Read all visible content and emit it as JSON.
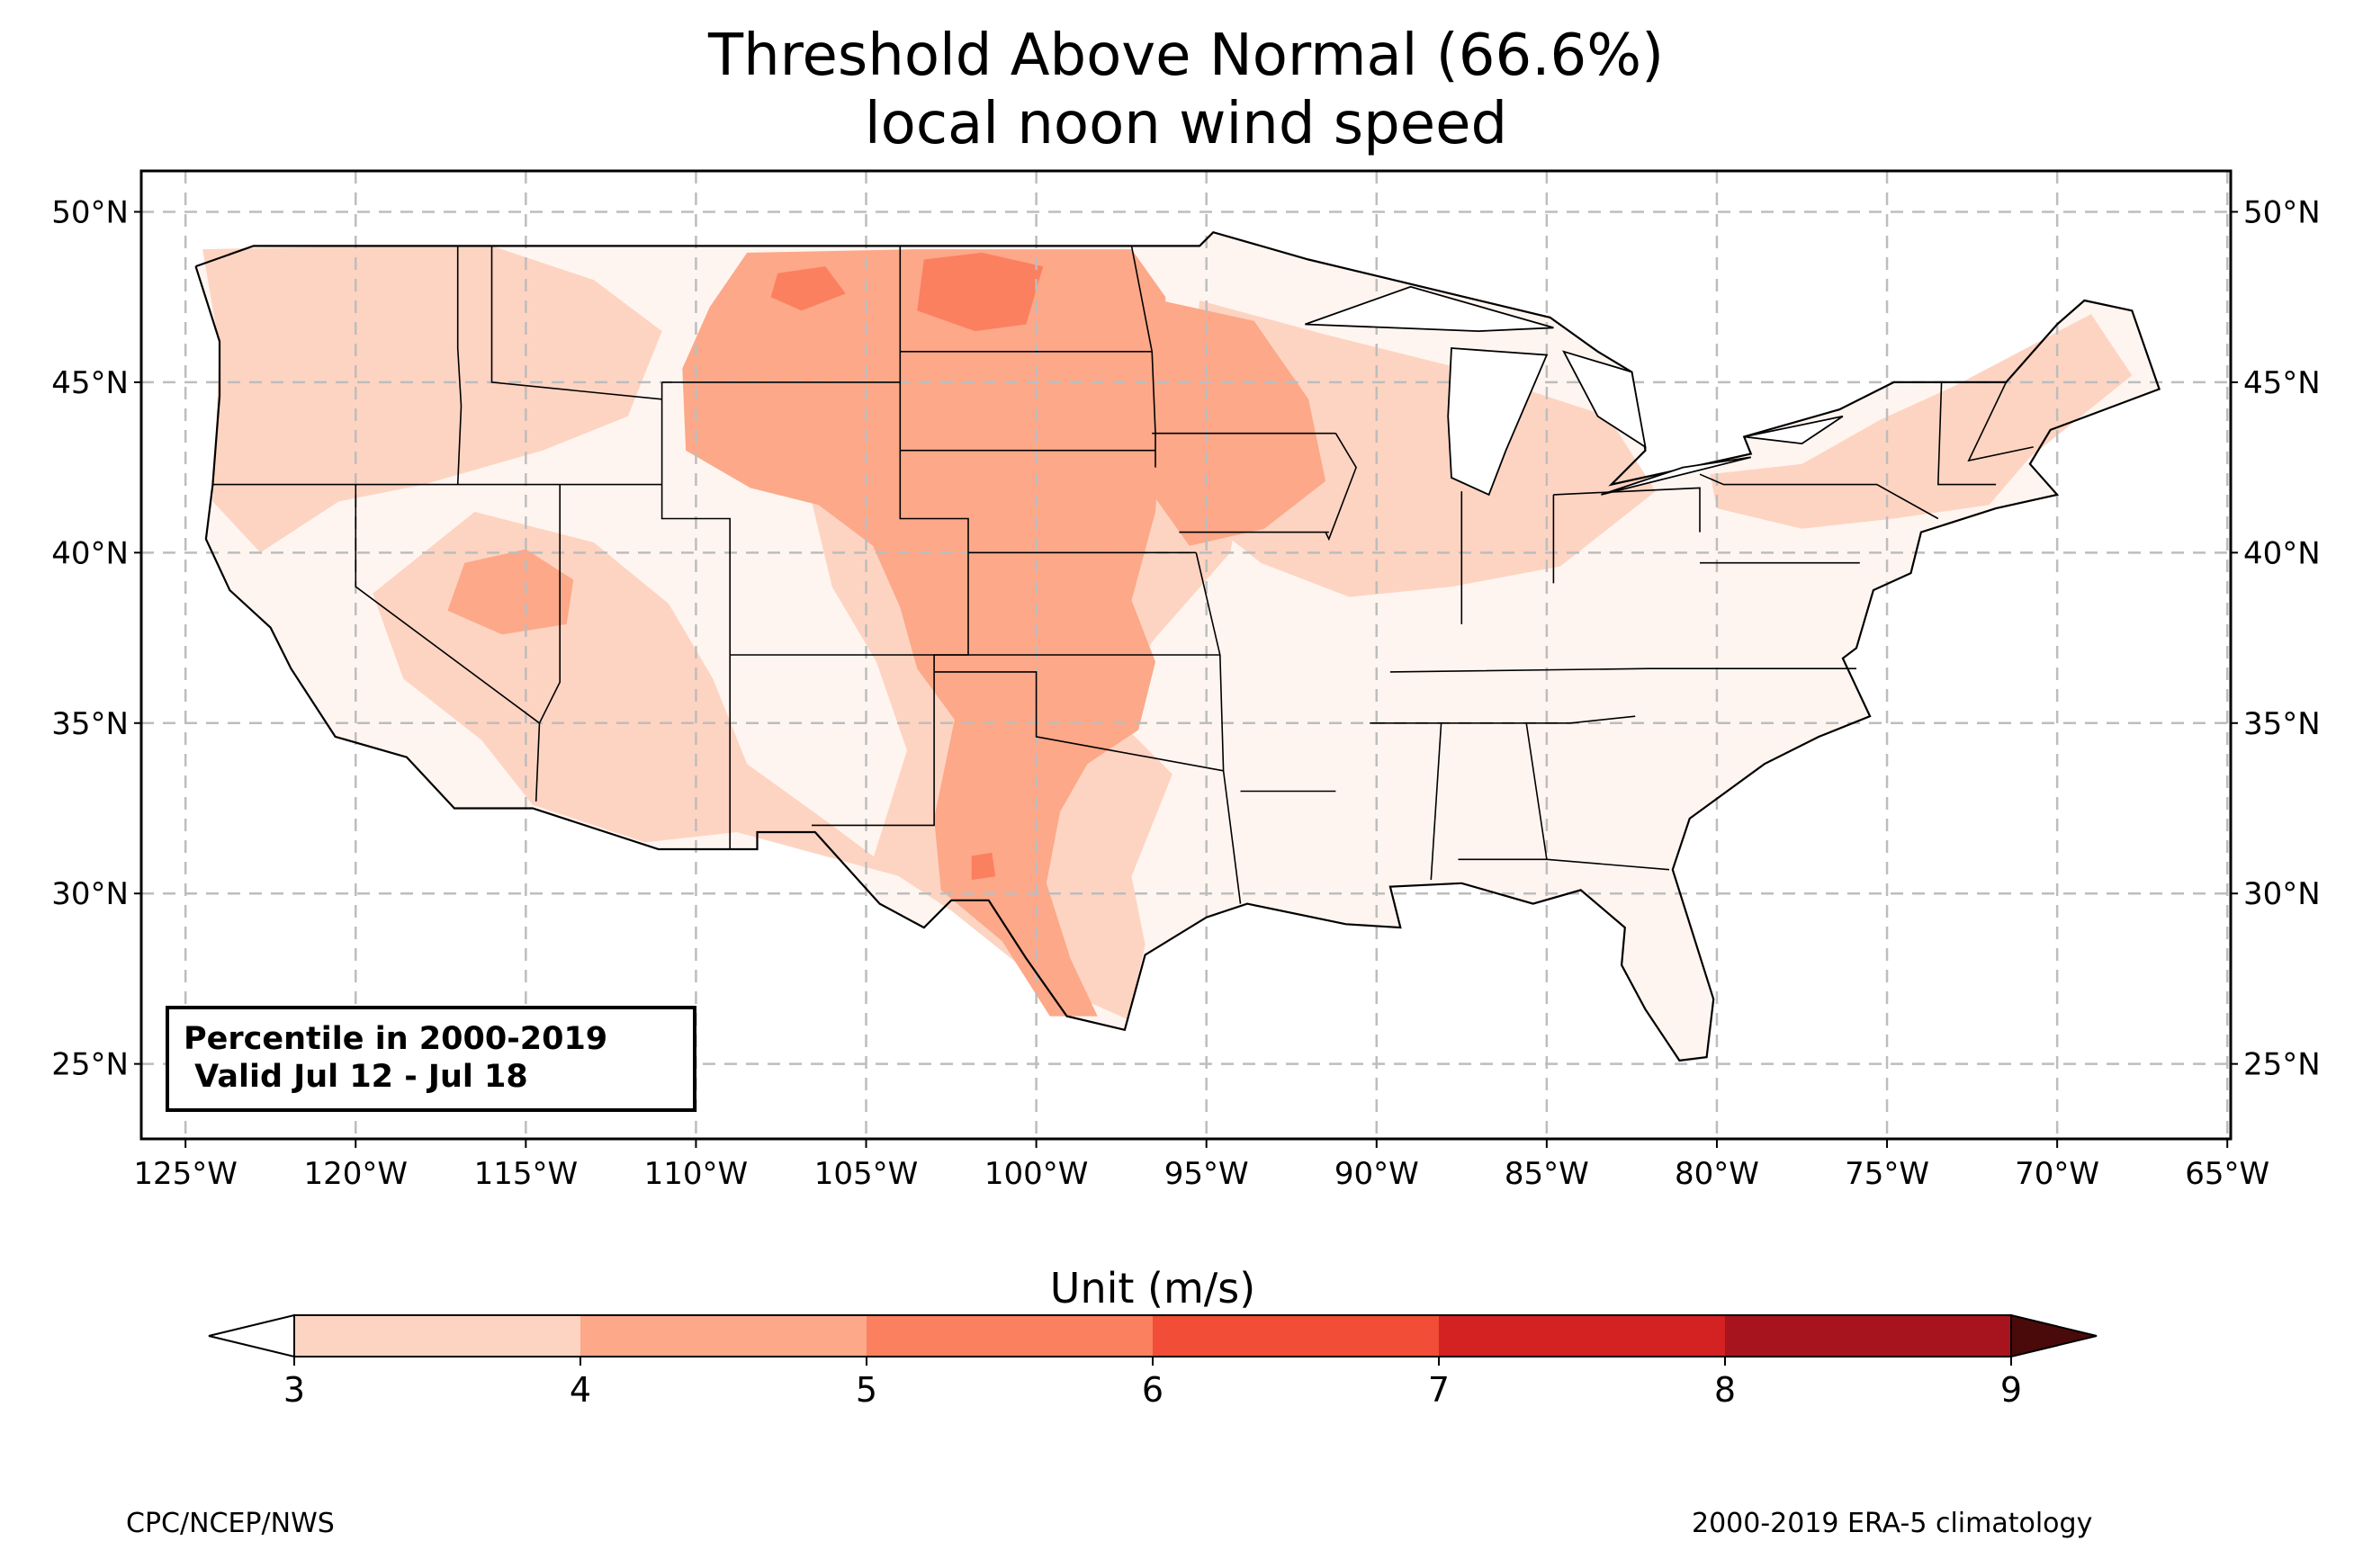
{
  "title": {
    "line1": "Threshold Above Normal (66.6%)",
    "line2": "local noon wind speed"
  },
  "info_box": {
    "line1": "Percentile in 2000-2019",
    "line2": " Valid Jul 12 - Jul 18"
  },
  "map": {
    "region": "Contiguous United States",
    "projection": "PlateCarree",
    "lon_range": [
      -126.3,
      -64.9
    ],
    "lat_range": [
      22.8,
      51.2
    ],
    "lon_ticks": [
      -125,
      -120,
      -115,
      -110,
      -105,
      -100,
      -95,
      -90,
      -85,
      -80,
      -75,
      -70,
      -65
    ],
    "lon_tick_labels": [
      "125°W",
      "120°W",
      "115°W",
      "110°W",
      "105°W",
      "100°W",
      "95°W",
      "90°W",
      "85°W",
      "80°W",
      "75°W",
      "70°W",
      "65°W"
    ],
    "lat_ticks": [
      25,
      30,
      35,
      40,
      45,
      50
    ],
    "lat_tick_labels": [
      "25°N",
      "30°N",
      "35°N",
      "40°N",
      "45°N",
      "50°N"
    ],
    "gridlines": true,
    "base_fill_color": "#fff1ec",
    "filled_regions": [
      {
        "name": "northern plains / dakotas",
        "level": "5-6",
        "color": "#fb8060",
        "polygon": [
          [
            -103.3,
            48.6
          ],
          [
            -101.6,
            48.8
          ],
          [
            -99.8,
            48.4
          ],
          [
            -100.3,
            46.7
          ],
          [
            -101.8,
            46.5
          ],
          [
            -103.5,
            47.1
          ]
        ]
      },
      {
        "name": "montana east",
        "level": "5-6",
        "color": "#fb8060",
        "polygon": [
          [
            -107.6,
            48.2
          ],
          [
            -106.2,
            48.4
          ],
          [
            -105.6,
            47.6
          ],
          [
            -106.9,
            47.1
          ],
          [
            -107.8,
            47.5
          ]
        ]
      },
      {
        "name": "west texas",
        "level": "5-6",
        "color": "#fb8060",
        "polygon": [
          [
            -101.9,
            31.1
          ],
          [
            -101.3,
            31.2
          ],
          [
            -101.2,
            30.5
          ],
          [
            -101.9,
            30.4
          ]
        ]
      },
      {
        "name": "great plains core",
        "level": "4-5",
        "color": "#fca889",
        "polygon": [
          [
            -108.5,
            48.8
          ],
          [
            -103.5,
            48.9
          ],
          [
            -97.2,
            48.9
          ],
          [
            -96.2,
            47.5
          ],
          [
            -96.3,
            44.0
          ],
          [
            -96.5,
            41.2
          ],
          [
            -97.2,
            38.6
          ],
          [
            -96.5,
            36.8
          ],
          [
            -97.0,
            34.8
          ],
          [
            -98.5,
            33.8
          ],
          [
            -99.3,
            32.4
          ],
          [
            -99.7,
            30.3
          ],
          [
            -99.0,
            28.1
          ],
          [
            -98.2,
            26.4
          ],
          [
            -99.6,
            26.4
          ],
          [
            -101.0,
            28.6
          ],
          [
            -102.8,
            30.1
          ],
          [
            -103.0,
            32.2
          ],
          [
            -102.4,
            35.1
          ],
          [
            -103.5,
            36.6
          ],
          [
            -104.0,
            38.4
          ],
          [
            -104.8,
            40.2
          ],
          [
            -106.4,
            41.4
          ],
          [
            -108.4,
            41.9
          ],
          [
            -110.3,
            43.0
          ],
          [
            -110.4,
            45.4
          ],
          [
            -109.6,
            47.2
          ]
        ]
      },
      {
        "name": "upper midwest",
        "level": "4-5",
        "color": "#fca889",
        "polygon": [
          [
            -96.8,
            47.5
          ],
          [
            -93.6,
            46.8
          ],
          [
            -92.0,
            44.5
          ],
          [
            -91.5,
            42.1
          ],
          [
            -93.3,
            40.7
          ],
          [
            -95.5,
            40.2
          ],
          [
            -96.5,
            41.6
          ]
        ]
      },
      {
        "name": "great basin",
        "level": "4-5",
        "color": "#fca889",
        "polygon": [
          [
            -116.8,
            39.7
          ],
          [
            -115.0,
            40.1
          ],
          [
            -113.6,
            39.2
          ],
          [
            -113.8,
            37.9
          ],
          [
            -115.7,
            37.6
          ],
          [
            -117.3,
            38.3
          ]
        ]
      },
      {
        "name": "northwest",
        "level": "3-4",
        "color": "#fdd4c2",
        "polygon": [
          [
            -124.5,
            48.9
          ],
          [
            -119.5,
            49.0
          ],
          [
            -116.0,
            49.0
          ],
          [
            -113.0,
            48.0
          ],
          [
            -111.0,
            46.5
          ],
          [
            -112.0,
            44.0
          ],
          [
            -114.5,
            43.0
          ],
          [
            -118.0,
            42.0
          ],
          [
            -120.5,
            41.5
          ],
          [
            -122.8,
            40.0
          ],
          [
            -124.2,
            41.5
          ],
          [
            -124.0,
            46.0
          ]
        ]
      },
      {
        "name": "southwest",
        "level": "3-4",
        "color": "#fdd4c2",
        "polygon": [
          [
            -119.5,
            38.8
          ],
          [
            -116.5,
            41.2
          ],
          [
            -113.0,
            40.3
          ],
          [
            -110.8,
            38.5
          ],
          [
            -109.5,
            36.3
          ],
          [
            -108.5,
            33.8
          ],
          [
            -106.0,
            32.0
          ],
          [
            -104.0,
            30.5
          ],
          [
            -108.8,
            31.8
          ],
          [
            -111.5,
            31.5
          ],
          [
            -114.8,
            32.6
          ],
          [
            -116.3,
            34.5
          ],
          [
            -118.6,
            36.3
          ]
        ]
      },
      {
        "name": "central plains",
        "level": "3-4",
        "color": "#fdd4c2",
        "polygon": [
          [
            -106.5,
            44.2
          ],
          [
            -103.5,
            44.5
          ],
          [
            -97.0,
            45.0
          ],
          [
            -93.5,
            44.5
          ],
          [
            -94.3,
            40.0
          ],
          [
            -96.5,
            37.5
          ],
          [
            -98.0,
            35.5
          ],
          [
            -96.0,
            33.5
          ],
          [
            -97.2,
            30.5
          ],
          [
            -96.8,
            28.5
          ],
          [
            -97.3,
            26.3
          ],
          [
            -100.0,
            27.5
          ],
          [
            -102.5,
            29.5
          ],
          [
            -104.8,
            31.0
          ],
          [
            -103.8,
            34.2
          ],
          [
            -104.7,
            36.8
          ],
          [
            -106.0,
            39.0
          ],
          [
            -106.6,
            41.5
          ]
        ]
      },
      {
        "name": "midwest / great lakes",
        "level": "3-4",
        "color": "#fdd4c2",
        "polygon": [
          [
            -95.2,
            47.4
          ],
          [
            -91.5,
            46.4
          ],
          [
            -87.5,
            45.4
          ],
          [
            -83.2,
            44.0
          ],
          [
            -81.8,
            41.8
          ],
          [
            -84.6,
            39.6
          ],
          [
            -87.8,
            39.0
          ],
          [
            -90.8,
            38.7
          ],
          [
            -93.4,
            39.7
          ],
          [
            -95.8,
            41.6
          ]
        ]
      },
      {
        "name": "northeast",
        "level": "3-4",
        "color": "#fdd4c2",
        "polygon": [
          [
            -80.2,
            42.3
          ],
          [
            -77.5,
            42.6
          ],
          [
            -75.2,
            43.9
          ],
          [
            -73.0,
            44.9
          ],
          [
            -69.0,
            47.0
          ],
          [
            -67.8,
            45.2
          ],
          [
            -70.8,
            42.8
          ],
          [
            -72.0,
            41.4
          ],
          [
            -74.8,
            41.0
          ],
          [
            -77.5,
            40.7
          ],
          [
            -80.0,
            41.3
          ]
        ]
      }
    ],
    "colors": {
      "land_background": "#fff5f0",
      "coast_line": "#000000",
      "state_line": "#000000",
      "county_line": "#8c8c8c",
      "grid": "#bdbdbd"
    }
  },
  "colorbar": {
    "title": "Unit (m/s)",
    "ticks": [
      3,
      4,
      5,
      6,
      7,
      8,
      9
    ],
    "tick_labels": [
      "3",
      "4",
      "5",
      "6",
      "7",
      "8",
      "9"
    ],
    "extend": "both",
    "under_color": "#ffffff",
    "over_color": "#4a0a0a",
    "bins": [
      {
        "from": 3,
        "to": 4,
        "color": "#fdd4c2"
      },
      {
        "from": 4,
        "to": 5,
        "color": "#fca889"
      },
      {
        "from": 5,
        "to": 6,
        "color": "#fb8060"
      },
      {
        "from": 6,
        "to": 7,
        "color": "#f14d37"
      },
      {
        "from": 7,
        "to": 8,
        "color": "#d42121"
      },
      {
        "from": 8,
        "to": 9,
        "color": "#a8141d"
      }
    ]
  },
  "footer": {
    "left": "CPC/NCEP/NWS",
    "right": "2000-2019 ERA-5 climatology"
  }
}
